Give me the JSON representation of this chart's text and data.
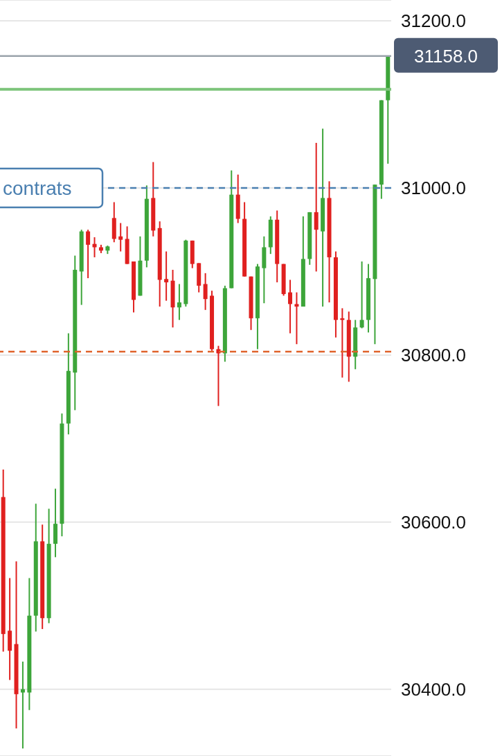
{
  "chart_data": {
    "type": "candlestick",
    "categories": [
      null,
      null,
      null,
      null,
      null,
      null,
      null,
      null,
      null,
      null,
      null,
      null,
      null,
      null,
      null,
      null,
      null,
      null,
      null,
      null,
      null,
      null,
      null,
      null,
      null,
      null,
      null,
      null,
      null,
      null,
      null,
      null,
      null,
      null,
      null,
      null,
      null,
      null,
      null,
      null,
      null,
      null,
      null,
      null,
      null,
      null,
      null,
      null,
      null,
      null,
      null,
      null,
      null,
      null,
      null,
      null,
      null,
      null,
      null,
      null
    ],
    "ohlc": [
      [
        30630,
        30663,
        30445,
        30466
      ],
      [
        30470,
        30533,
        30411,
        30446
      ],
      [
        30454,
        30553,
        30353,
        30394
      ],
      [
        30396,
        30433,
        30329,
        30400
      ],
      [
        30396,
        30533,
        30375,
        30488
      ],
      [
        30488,
        30622,
        30469,
        30577
      ],
      [
        30577,
        30597,
        30472,
        30485
      ],
      [
        30485,
        30616,
        30479,
        30574
      ],
      [
        30574,
        30640,
        30558,
        30598
      ],
      [
        30598,
        30730,
        30583,
        30718
      ],
      [
        30718,
        30826,
        30705,
        30781
      ],
      [
        30779,
        30919,
        30734,
        30902
      ],
      [
        30900,
        30950,
        30860,
        30948
      ],
      [
        30948,
        30950,
        30892,
        30932
      ],
      [
        30933,
        30941,
        30917,
        30929
      ],
      [
        30929,
        30932,
        30922,
        30925
      ],
      [
        30925,
        30931,
        30921,
        30930
      ],
      [
        30964,
        30983,
        30935,
        30939
      ],
      [
        30942,
        30958,
        30924,
        30938
      ],
      [
        30939,
        30954,
        30909,
        30909
      ],
      [
        30912,
        30912,
        30851,
        30866
      ],
      [
        30871,
        30942,
        30871,
        30913
      ],
      [
        30913,
        31003,
        30905,
        30987
      ],
      [
        30988,
        31031,
        30942,
        30949
      ],
      [
        30952,
        30960,
        30858,
        30890
      ],
      [
        30891,
        30924,
        30865,
        30887
      ],
      [
        30889,
        30902,
        30833,
        30857
      ],
      [
        30857,
        30885,
        30842,
        30863
      ],
      [
        30861,
        30938,
        30858,
        30937
      ],
      [
        30937,
        30937,
        30904,
        30909
      ],
      [
        30910,
        30910,
        30875,
        30883
      ],
      [
        30885,
        30898,
        30854,
        30867
      ],
      [
        30871,
        30877,
        30805,
        30807
      ],
      [
        30807,
        30811,
        30739,
        30802
      ],
      [
        30802,
        30883,
        30792,
        30880
      ],
      [
        30880,
        31021,
        30880,
        30992
      ],
      [
        30992,
        31016,
        30958,
        30963
      ],
      [
        30963,
        30983,
        30894,
        30894
      ],
      [
        30894,
        30894,
        30830,
        30844
      ],
      [
        30844,
        30909,
        30807,
        30906
      ],
      [
        30904,
        30942,
        30862,
        30929
      ],
      [
        30929,
        30966,
        30921,
        30962
      ],
      [
        30962,
        30973,
        30887,
        30909
      ],
      [
        30909,
        30909,
        30871,
        30873
      ],
      [
        30875,
        30890,
        30826,
        30861
      ],
      [
        30861,
        30875,
        30813,
        30858
      ],
      [
        30858,
        30966,
        30858,
        30915
      ],
      [
        30915,
        30971,
        30908,
        30971
      ],
      [
        30971,
        31054,
        30900,
        30950
      ],
      [
        30948,
        31071,
        30858,
        30988
      ],
      [
        30988,
        31008,
        30863,
        30917
      ],
      [
        30917,
        30924,
        30821,
        30842
      ],
      [
        30844,
        30856,
        30773,
        30842
      ],
      [
        30842,
        30852,
        30768,
        30798
      ],
      [
        30798,
        30842,
        30783,
        30833
      ],
      [
        30833,
        30912,
        30832,
        30842
      ],
      [
        30842,
        30909,
        30827,
        30892
      ],
      [
        30891,
        31004,
        30813,
        31004
      ],
      [
        31004,
        31105,
        30987,
        31105
      ],
      [
        31105,
        31158,
        31029,
        31158
      ]
    ],
    "colors": [
      "#e0201f",
      "#e0201f",
      "#e0201f",
      "#3da53a",
      "#3da53a",
      "#3da53a",
      "#e0201f",
      "#3da53a",
      "#3da53a",
      "#3da53a",
      "#3da53a",
      "#3da53a",
      "#3da53a",
      "#e0201f",
      "#e0201f",
      "#e0201f",
      "#3da53a",
      "#e0201f",
      "#e0201f",
      "#e0201f",
      "#e0201f",
      "#3da53a",
      "#3da53a",
      "#e0201f",
      "#e0201f",
      "#e0201f",
      "#e0201f",
      "#3da53a",
      "#3da53a",
      "#e0201f",
      "#e0201f",
      "#e0201f",
      "#e0201f",
      "#e0201f",
      "#3da53a",
      "#3da53a",
      "#e0201f",
      "#e0201f",
      "#e0201f",
      "#3da53a",
      "#3da53a",
      "#3da53a",
      "#e0201f",
      "#e0201f",
      "#e0201f",
      "#e0201f",
      "#3da53a",
      "#3da53a",
      "#e0201f",
      "#3da53a",
      "#e0201f",
      "#e0201f",
      "#e0201f",
      "#e0201f",
      "#3da53a",
      "#3da53a",
      "#3da53a",
      "#3da53a",
      "#3da53a",
      "#3da53a"
    ],
    "ylim": [
      30320,
      31225
    ],
    "yticks": [
      {
        "value": 30400,
        "label": "30400.0"
      },
      {
        "value": 30600,
        "label": "30600.0"
      },
      {
        "value": 30800,
        "label": "30800.0"
      },
      {
        "value": 31000,
        "label": "31000.0"
      },
      {
        "value": 31200,
        "label": "31200.0"
      }
    ],
    "grid": "y",
    "ref_lines": [
      {
        "axis": "y",
        "value": 31158,
        "label": "31158.0",
        "color": "#9aa3ab",
        "line_style": "solid"
      },
      {
        "axis": "y",
        "value": 31118,
        "color": "#7cc47a",
        "line_style": "solid"
      },
      {
        "axis": "y",
        "value": 31000,
        "label": "contrats",
        "color": "#4a7fb0",
        "line_style": "dashed"
      },
      {
        "axis": "y",
        "value": 30804,
        "color": "#e0622a",
        "line_style": "dashed"
      }
    ]
  }
}
